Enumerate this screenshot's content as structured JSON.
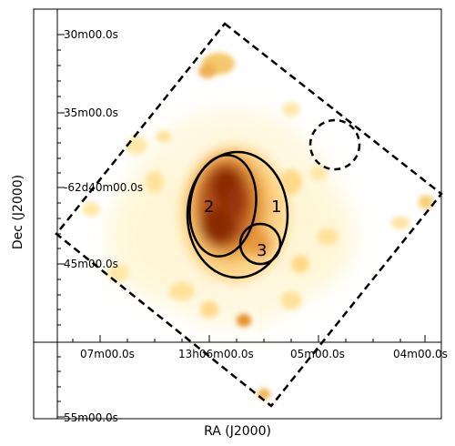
{
  "figure": {
    "x_axis_title": "RA (J2000)",
    "y_axis_title": "Dec (J2000)",
    "ra_ticks": [
      "07m00.0s",
      "13h06m00.0s",
      "05m00.0s",
      "04m00.0s"
    ],
    "dec_ticks": [
      "30m00.0s",
      "35m00.0s",
      "-62d40m00.0s",
      "45m00.0s",
      "55m00.0s"
    ],
    "region_labels": [
      "1",
      "2",
      "3"
    ],
    "colors": {
      "frame": "#000000",
      "emission_bright": "#8a2a05",
      "emission_mid": "#d77a1e",
      "emission_faint": "#ffe49c"
    }
  }
}
